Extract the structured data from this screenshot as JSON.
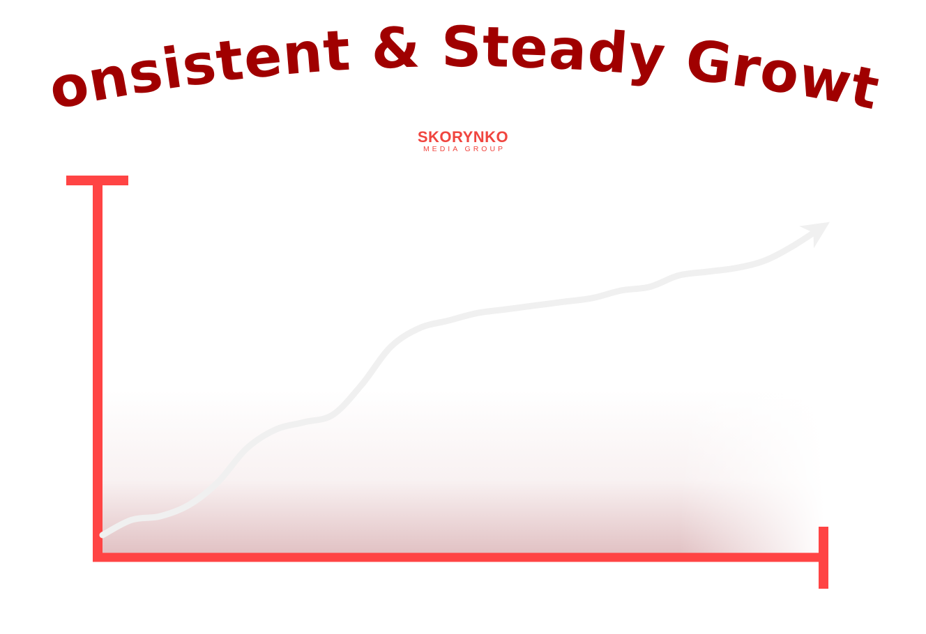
{
  "chart_data": {
    "type": "line",
    "title": "Consistent & Steady Growth",
    "xlabel": "",
    "ylabel": "",
    "series": [
      {
        "x": [
          0,
          4,
          8,
          12,
          16,
          20,
          24,
          28,
          32,
          36,
          40,
          44,
          48,
          52,
          56,
          60,
          64,
          68,
          72,
          76,
          80,
          84,
          88,
          92,
          96,
          100
        ],
        "y": [
          5,
          9,
          10,
          13,
          19,
          28,
          33,
          35,
          37,
          45,
          55,
          60,
          62,
          64,
          65,
          66,
          67,
          68,
          70,
          71,
          74,
          75,
          76,
          78,
          82,
          87
        ]
      }
    ],
    "xlim": [
      0,
      100
    ],
    "ylim": [
      0,
      100
    ],
    "grid": false,
    "arrow_end": true
  },
  "logo": {
    "name": "SKORYNKO",
    "tagline": "MEDIA GROUP"
  },
  "colors": {
    "title": "#a00000",
    "axis": "#ff4444",
    "line": "#f0f0f0",
    "logo": "#f0453f",
    "shadow": "#c98f93"
  }
}
